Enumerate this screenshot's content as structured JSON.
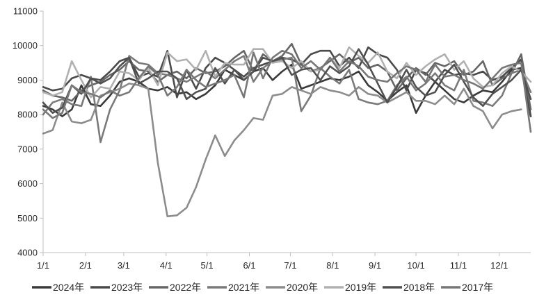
{
  "chart_data": {
    "type": "line",
    "title": "",
    "xlabel": "",
    "ylabel": "",
    "ylim": [
      4000,
      11000
    ],
    "yticks": [
      4000,
      5000,
      6000,
      7000,
      8000,
      9000,
      10000,
      11000
    ],
    "xticks": [
      {
        "label": "1/1",
        "week": 0
      },
      {
        "label": "2/1",
        "week": 4.43
      },
      {
        "label": "3/1",
        "week": 8.43
      },
      {
        "label": "4/1",
        "week": 12.86
      },
      {
        "label": "5/1",
        "week": 17.14
      },
      {
        "label": "6/1",
        "week": 21.57
      },
      {
        "label": "7/1",
        "week": 25.86
      },
      {
        "label": "8/1",
        "week": 30.29
      },
      {
        "label": "9/1",
        "week": 34.71
      },
      {
        "label": "10/1",
        "week": 39
      },
      {
        "label": "11/1",
        "week": 43.43
      },
      {
        "label": "12/1",
        "week": 47.71
      }
    ],
    "x_max_week": 51,
    "grid": "none",
    "legend_position": "bottom",
    "series": [
      {
        "name": "2024年",
        "color": "#3a3a3a",
        "values": [
          8250,
          8150,
          7950,
          8150,
          8850,
          8300,
          8250,
          8550,
          8950,
          9050,
          8950,
          8750,
          8700,
          8800,
          8600,
          8650,
          8450,
          8600,
          8850,
          9300,
          9150,
          9000,
          9250,
          9350,
          9000,
          9250,
          9450,
          8750,
          8850,
          8950,
          9050,
          9000,
          9100,
          9250,
          8850,
          8650,
          8400,
          8650,
          8850,
          8050,
          8550,
          8950,
          8700,
          8450,
          8350,
          8550,
          8700,
          8650,
          8950,
          9300,
          9350,
          7950
        ]
      },
      {
        "name": "2023年",
        "color": "#4a4a4a",
        "values": [
          8800,
          8700,
          8750,
          9050,
          9150,
          9050,
          9000,
          9250,
          9550,
          9650,
          9100,
          9200,
          9100,
          9850,
          8500,
          9300,
          8750,
          9350,
          9650,
          9500,
          9300,
          9100,
          9350,
          9450,
          9550,
          9650,
          9600,
          9450,
          9750,
          9850,
          9850,
          9400,
          9650,
          9350,
          9950,
          9750,
          9650,
          9300,
          8700,
          9300,
          9200,
          8950,
          9300,
          9150,
          9200,
          9150,
          9250,
          9000,
          9100,
          9350,
          9600,
          7950
        ]
      },
      {
        "name": "2022年",
        "color": "#666666",
        "values": [
          8700,
          8550,
          8500,
          8400,
          8700,
          8850,
          8950,
          9150,
          9300,
          9550,
          9300,
          9250,
          8950,
          9150,
          9250,
          9050,
          9350,
          9200,
          9250,
          9400,
          9650,
          9850,
          9250,
          9750,
          9550,
          9700,
          10050,
          9450,
          9250,
          9350,
          9550,
          9750,
          9500,
          9650,
          9350,
          9450,
          9250,
          8700,
          9050,
          9350,
          9150,
          9500,
          9400,
          9550,
          9150,
          9250,
          9550,
          8850,
          9050,
          9200,
          9750,
          8150
        ]
      },
      {
        "name": "2021年",
        "color": "#7a7a7a",
        "values": [
          8000,
          8350,
          8450,
          8300,
          8250,
          9100,
          7200,
          8150,
          8700,
          9700,
          9500,
          9450,
          9200,
          9150,
          9050,
          8950,
          9100,
          9250,
          9050,
          9300,
          9550,
          9700,
          8950,
          9350,
          9550,
          9600,
          9650,
          8100,
          8550,
          9350,
          9100,
          8900,
          9300,
          8450,
          8350,
          8300,
          8400,
          8850,
          9100,
          8700,
          8900,
          9200,
          8850,
          8700,
          9300,
          8400,
          8350,
          8250,
          8550,
          9200,
          9300,
          8650
        ]
      },
      {
        "name": "2020年",
        "color": "#8c8c8c",
        "values": [
          7450,
          7550,
          8350,
          7800,
          7750,
          7850,
          8550,
          8650,
          8750,
          8900,
          8850,
          8750,
          6600,
          5050,
          5080,
          5300,
          5900,
          6700,
          7400,
          6800,
          7250,
          7550,
          7900,
          7850,
          8550,
          8600,
          8800,
          8700,
          8600,
          8800,
          8700,
          8650,
          8550,
          8800,
          8600,
          8550,
          8350,
          8500,
          8650,
          8400,
          8400,
          8300,
          8550,
          8300,
          8750,
          8250,
          8100,
          7600,
          8000,
          8100,
          8150,
          null
        ]
      },
      {
        "name": "2019年",
        "color": "#b0b0b0",
        "values": [
          8650,
          8550,
          8650,
          9550,
          9000,
          8500,
          8800,
          8750,
          9250,
          9200,
          9000,
          9350,
          8850,
          9800,
          9550,
          9600,
          9300,
          9850,
          9100,
          9500,
          9450,
          9450,
          9900,
          9900,
          9500,
          9550,
          9350,
          9550,
          9250,
          9300,
          9650,
          9350,
          9950,
          9700,
          9500,
          9800,
          9250,
          9050,
          9500,
          9150,
          9400,
          9600,
          9750,
          9300,
          9550,
          9050,
          8800,
          8850,
          9200,
          9400,
          9250,
          8950
        ]
      },
      {
        "name": "2018年",
        "color": "#505050",
        "values": [
          8350,
          8050,
          8200,
          8850,
          8600,
          9050,
          8900,
          9050,
          9400,
          9650,
          8900,
          9050,
          9250,
          9250,
          9050,
          8450,
          8650,
          8750,
          9350,
          8900,
          9300,
          9000,
          9250,
          9650,
          9550,
          9650,
          9150,
          9300,
          9350,
          9000,
          9400,
          9200,
          9400,
          9900,
          9450,
          8900,
          8350,
          8800,
          9300,
          8800,
          8550,
          8650,
          9150,
          9450,
          8950,
          8500,
          8250,
          8600,
          8800,
          9000,
          9300,
          8450
        ]
      },
      {
        "name": "2017年",
        "color": "#777777",
        "values": [
          8150,
          7900,
          8050,
          8850,
          8650,
          8600,
          8500,
          8700,
          8550,
          8650,
          9050,
          9400,
          9150,
          8550,
          8800,
          9300,
          9000,
          8800,
          8900,
          9000,
          9150,
          8500,
          9800,
          9050,
          9650,
          9850,
          9750,
          9350,
          9550,
          9300,
          9650,
          9250,
          9550,
          9400,
          9100,
          9000,
          8950,
          9200,
          9400,
          9300,
          8950,
          9450,
          9100,
          9150,
          9000,
          8900,
          8750,
          9050,
          9350,
          9450,
          9500,
          7500
        ]
      }
    ]
  }
}
